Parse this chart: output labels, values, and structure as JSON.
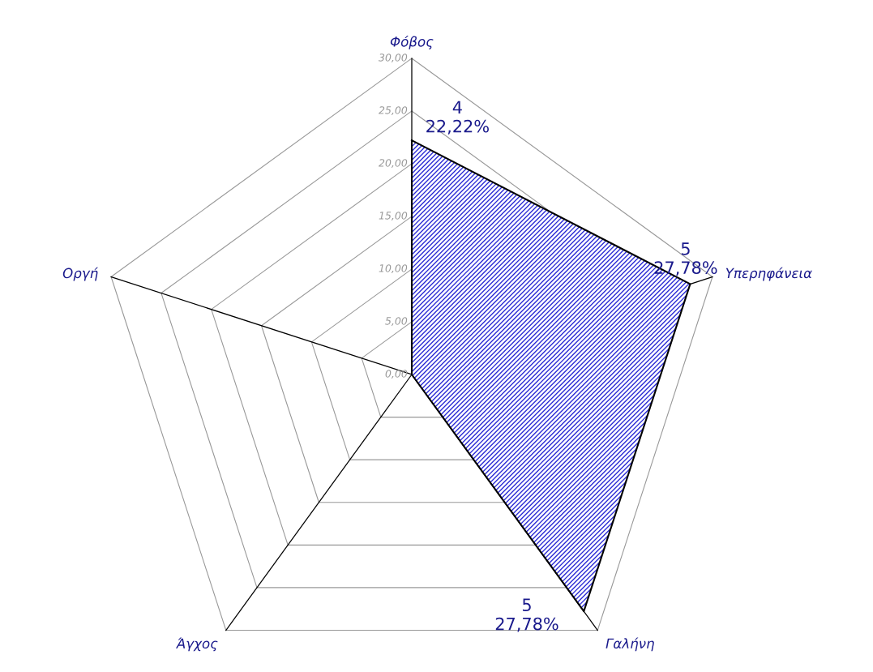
{
  "chart_data": {
    "type": "radar",
    "categories": [
      "Φόβος",
      "Υπερηφάνεια",
      "Γαλήνη",
      "Άγχος",
      "Οργή"
    ],
    "series": [
      {
        "color": "#2b2bd6",
        "values": [
          22.22,
          27.78,
          27.78,
          0,
          0
        ],
        "value_labels": [
          "4\n22,22%",
          "5\n27,78%",
          "5\n27,78%",
          null,
          null
        ]
      }
    ],
    "ylim": [
      0,
      30
    ],
    "yticks": [
      {
        "value": 0,
        "label": "0,00"
      },
      {
        "value": 5,
        "label": "5,00"
      },
      {
        "value": 10,
        "label": "10,00"
      },
      {
        "value": 15,
        "label": "15,00"
      },
      {
        "value": 20,
        "label": "20,00"
      },
      {
        "value": 25,
        "label": "25,00"
      },
      {
        "value": 30,
        "label": "30,00"
      }
    ],
    "grid": true,
    "marker": "none"
  }
}
